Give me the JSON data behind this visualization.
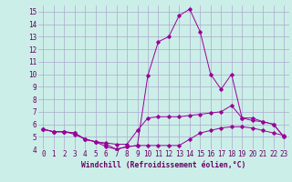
{
  "xlabel": "Windchill (Refroidissement éolien,°C)",
  "bg_color": "#cceee8",
  "grid_color": "#aaaacc",
  "line_color": "#990099",
  "xlim": [
    -0.5,
    23.5
  ],
  "ylim": [
    4.0,
    15.5
  ],
  "yticks": [
    4,
    5,
    6,
    7,
    8,
    9,
    10,
    11,
    12,
    13,
    14,
    15
  ],
  "xticks": [
    0,
    1,
    2,
    3,
    4,
    5,
    6,
    7,
    8,
    9,
    10,
    11,
    12,
    13,
    14,
    15,
    16,
    17,
    18,
    19,
    20,
    21,
    22,
    23
  ],
  "curve1_x": [
    0,
    1,
    2,
    3,
    4,
    5,
    6,
    7,
    8,
    9,
    10,
    11,
    12,
    13,
    14,
    15,
    16,
    17,
    18,
    19,
    20,
    21,
    22,
    23
  ],
  "curve1_y": [
    5.6,
    5.4,
    5.4,
    5.3,
    4.8,
    4.6,
    4.2,
    4.0,
    4.2,
    4.3,
    4.3,
    4.3,
    4.3,
    4.3,
    4.8,
    5.3,
    5.5,
    5.7,
    5.8,
    5.8,
    5.7,
    5.5,
    5.3,
    5.1
  ],
  "curve2_x": [
    0,
    1,
    2,
    3,
    4,
    5,
    6,
    7,
    8,
    9,
    10,
    11,
    12,
    13,
    14,
    15,
    16,
    17,
    18,
    19,
    20,
    21,
    22,
    23
  ],
  "curve2_y": [
    5.6,
    5.4,
    5.4,
    5.3,
    4.8,
    4.6,
    4.5,
    4.4,
    4.4,
    5.5,
    6.5,
    6.6,
    6.6,
    6.6,
    6.7,
    6.8,
    6.9,
    7.0,
    7.5,
    6.5,
    6.5,
    6.2,
    6.0,
    5.0
  ],
  "curve3_x": [
    0,
    1,
    2,
    3,
    4,
    5,
    6,
    7,
    8,
    9,
    10,
    11,
    12,
    13,
    14,
    15,
    16,
    17,
    18,
    19,
    20,
    21,
    22,
    23
  ],
  "curve3_y": [
    5.6,
    5.4,
    5.4,
    5.2,
    4.8,
    4.6,
    4.4,
    4.0,
    4.2,
    4.3,
    9.9,
    12.6,
    13.0,
    14.7,
    15.2,
    13.4,
    10.0,
    8.8,
    10.0,
    6.5,
    6.3,
    6.2,
    6.0,
    5.0
  ],
  "label_color": "#660066",
  "tick_fontsize": 5.5,
  "xlabel_fontsize": 5.8
}
